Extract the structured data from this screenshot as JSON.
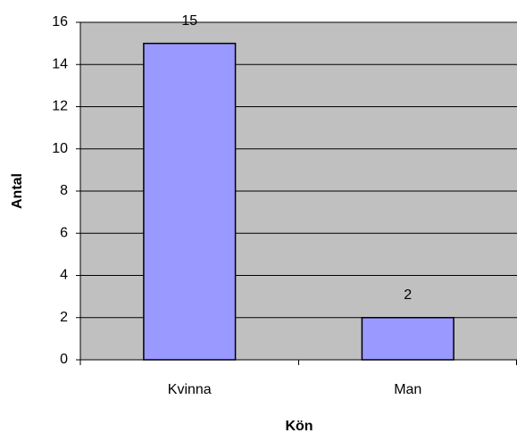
{
  "chart_data": {
    "type": "bar",
    "categories": [
      "Kvinna",
      "Man"
    ],
    "values": [
      15,
      2
    ],
    "color": "#9999ff",
    "xlabel": "Kön",
    "ylabel": "Antal",
    "ylim": [
      0,
      16
    ],
    "yticks": [
      0,
      2,
      4,
      6,
      8,
      10,
      12,
      14,
      16
    ],
    "grid": true
  }
}
